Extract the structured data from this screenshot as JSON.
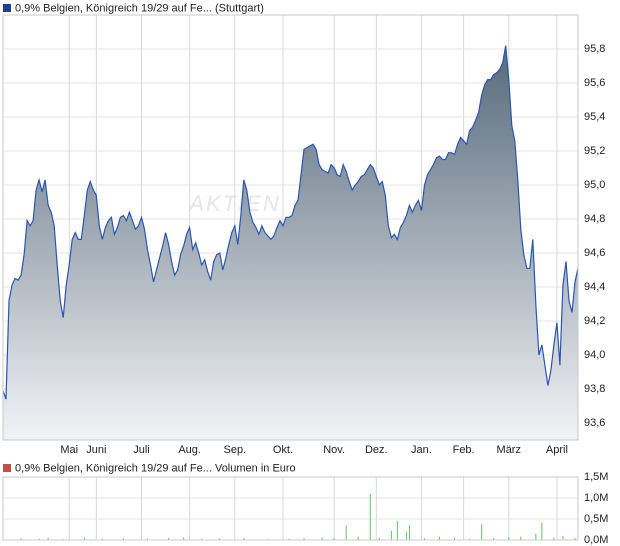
{
  "chart_data": [
    {
      "type": "area",
      "title": "0,9% Belgien, Königreich 19/29 auf Fe... (Stuttgart)",
      "watermark": "AKTIEN",
      "legend_color": "#1f3f8f",
      "color": "#2a56b0",
      "fill_top": "#56697a",
      "fill_bottom": "#f2f3f6",
      "grid": true,
      "xlim": [
        0,
        191
      ],
      "xticks": [
        {
          "value": 22,
          "label": "Mai"
        },
        {
          "value": 31,
          "label": "Juni"
        },
        {
          "value": 46,
          "label": "Juli"
        },
        {
          "value": 62,
          "label": "Aug."
        },
        {
          "value": 77,
          "label": "Sep."
        },
        {
          "value": 93,
          "label": "Okt."
        },
        {
          "value": 110,
          "label": "Nov."
        },
        {
          "value": 124,
          "label": "Dez."
        },
        {
          "value": 139,
          "label": "Jan."
        },
        {
          "value": 153,
          "label": "Feb."
        },
        {
          "value": 168,
          "label": "März"
        },
        {
          "value": 184,
          "label": "April"
        }
      ],
      "ylim": [
        93.5,
        96.0
      ],
      "yticks": [
        {
          "value": 93.6,
          "label": "93,6"
        },
        {
          "value": 93.8,
          "label": "93,8"
        },
        {
          "value": 94.0,
          "label": "94,0"
        },
        {
          "value": 94.2,
          "label": "94,2"
        },
        {
          "value": 94.4,
          "label": "94,4"
        },
        {
          "value": 94.6,
          "label": "94,6"
        },
        {
          "value": 94.8,
          "label": "94,8"
        },
        {
          "value": 95.0,
          "label": "95,0"
        },
        {
          "value": 95.2,
          "label": "95,2"
        },
        {
          "value": 95.4,
          "label": "95,4"
        },
        {
          "value": 95.6,
          "label": "95,6"
        },
        {
          "value": 95.8,
          "label": "95,8"
        }
      ],
      "series": [
        {
          "values": [
            93.79,
            93.74,
            94.32,
            94.41,
            94.45,
            94.44,
            94.47,
            94.59,
            94.79,
            94.76,
            94.79,
            94.97,
            95.03,
            94.96,
            95.03,
            94.88,
            94.84,
            94.76,
            94.53,
            94.32,
            94.22,
            94.41,
            94.53,
            94.68,
            94.72,
            94.68,
            94.68,
            94.82,
            94.97,
            95.02,
            94.97,
            94.94,
            94.76,
            94.68,
            94.75,
            94.79,
            94.81,
            94.71,
            94.75,
            94.81,
            94.82,
            94.79,
            94.84,
            94.79,
            94.74,
            94.76,
            94.81,
            94.74,
            94.62,
            94.53,
            94.43,
            94.5,
            94.57,
            94.64,
            94.72,
            94.65,
            94.55,
            94.47,
            94.5,
            94.59,
            94.64,
            94.71,
            94.75,
            94.62,
            94.66,
            94.6,
            94.53,
            94.56,
            94.49,
            94.44,
            94.55,
            94.59,
            94.6,
            94.5,
            94.57,
            94.65,
            94.72,
            94.76,
            94.65,
            94.82,
            95.03,
            94.97,
            94.84,
            94.78,
            94.75,
            94.71,
            94.76,
            94.72,
            94.7,
            94.68,
            94.7,
            94.75,
            94.79,
            94.76,
            94.81,
            94.81,
            94.82,
            94.88,
            94.91,
            95.06,
            95.21,
            95.22,
            95.23,
            95.24,
            95.21,
            95.12,
            95.09,
            95.08,
            95.07,
            95.12,
            95.1,
            95.06,
            95.05,
            95.12,
            95.08,
            95.02,
            94.97,
            95.0,
            95.02,
            95.05,
            95.06,
            95.09,
            95.12,
            95.1,
            95.05,
            95.0,
            95.02,
            94.94,
            94.76,
            94.69,
            94.71,
            94.68,
            94.75,
            94.78,
            94.82,
            94.88,
            94.84,
            94.88,
            94.91,
            94.85,
            95.0,
            95.06,
            95.09,
            95.12,
            95.16,
            95.17,
            95.15,
            95.15,
            95.19,
            95.19,
            95.18,
            95.24,
            95.28,
            95.26,
            95.24,
            95.32,
            95.34,
            95.38,
            95.43,
            95.53,
            95.59,
            95.62,
            95.62,
            95.65,
            95.66,
            95.68,
            95.72,
            95.82,
            95.62,
            95.35,
            95.26,
            95.03,
            94.74,
            94.59,
            94.51,
            94.51,
            94.68,
            94.29,
            94.0,
            94.06,
            93.94,
            93.82,
            93.91,
            94.06,
            94.19,
            93.94,
            94.41,
            94.55,
            94.32,
            94.25,
            94.43,
            94.51
          ]
        }
      ]
    },
    {
      "type": "bar",
      "title": "0,9% Belgien, Königreich 19/29 auf Fe... Volumen in Euro",
      "legend_color": "#c0504d",
      "color": "#5cc85c",
      "grid": true,
      "xlim": [
        0,
        191
      ],
      "ylim": [
        0,
        1.5
      ],
      "yticks": [
        {
          "value": 0,
          "label": "0,0M"
        },
        {
          "value": 0.5,
          "label": "0,5M"
        },
        {
          "value": 1.0,
          "label": "1,0M"
        },
        {
          "value": 1.5,
          "label": "1,5M"
        }
      ],
      "x": [
        6,
        12,
        15,
        20,
        27,
        33,
        40,
        48,
        55,
        60,
        66,
        72,
        80,
        88,
        95,
        100,
        106,
        110,
        114,
        118,
        122,
        125,
        129,
        131,
        134,
        135,
        140,
        145,
        150,
        155,
        159,
        163,
        168,
        172,
        177,
        179,
        183,
        186,
        190
      ],
      "values": [
        0.04,
        0.03,
        0.05,
        0.02,
        0.06,
        0.03,
        0.04,
        0.03,
        0.05,
        0.06,
        0.03,
        0.04,
        0.05,
        0.02,
        0.03,
        0.04,
        0.06,
        0.05,
        0.35,
        0.08,
        1.1,
        0.05,
        0.22,
        0.45,
        0.2,
        0.35,
        0.04,
        0.08,
        0.05,
        0.03,
        0.37,
        0.05,
        0.06,
        0.08,
        0.15,
        0.42,
        0.06,
        0.09,
        0.05
      ]
    }
  ]
}
